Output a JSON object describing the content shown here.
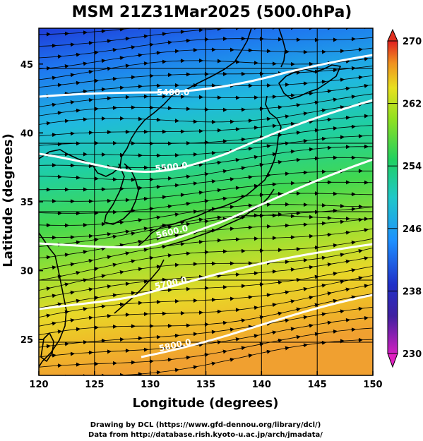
{
  "title": "MSM 21Z31Mar2025 (500.0hPa)",
  "x_axis": {
    "label": "Longitude (degrees)",
    "ticks": [
      "120",
      "125",
      "130",
      "135",
      "140",
      "145",
      "150"
    ],
    "range": [
      120,
      150
    ]
  },
  "y_axis": {
    "label": "Latitude  (degrees)",
    "ticks": [
      "25",
      "30",
      "35",
      "40",
      "45"
    ],
    "range": [
      22.4,
      47.6
    ]
  },
  "colorbar": {
    "ticks": [
      "230",
      "238",
      "246",
      "254",
      "262",
      "270"
    ],
    "range": [
      230,
      270
    ],
    "colors": [
      "#d020c0",
      "#2020b0",
      "#1e90ff",
      "#20c8d0",
      "#20d060",
      "#80e020",
      "#e8e820",
      "#f0a020",
      "#e03020"
    ]
  },
  "contours": {
    "color": "#ffffff",
    "labels": [
      "5400.0",
      "5500.0",
      "5600.0",
      "5700.0",
      "5800.0"
    ]
  },
  "credits": {
    "line1": "Drawing by DCL (https://www.gfd-dennou.org/library/dcl/)",
    "line2": "Data from http://database.rish.kyoto-u.ac.jp/arch/jmadata/"
  }
}
